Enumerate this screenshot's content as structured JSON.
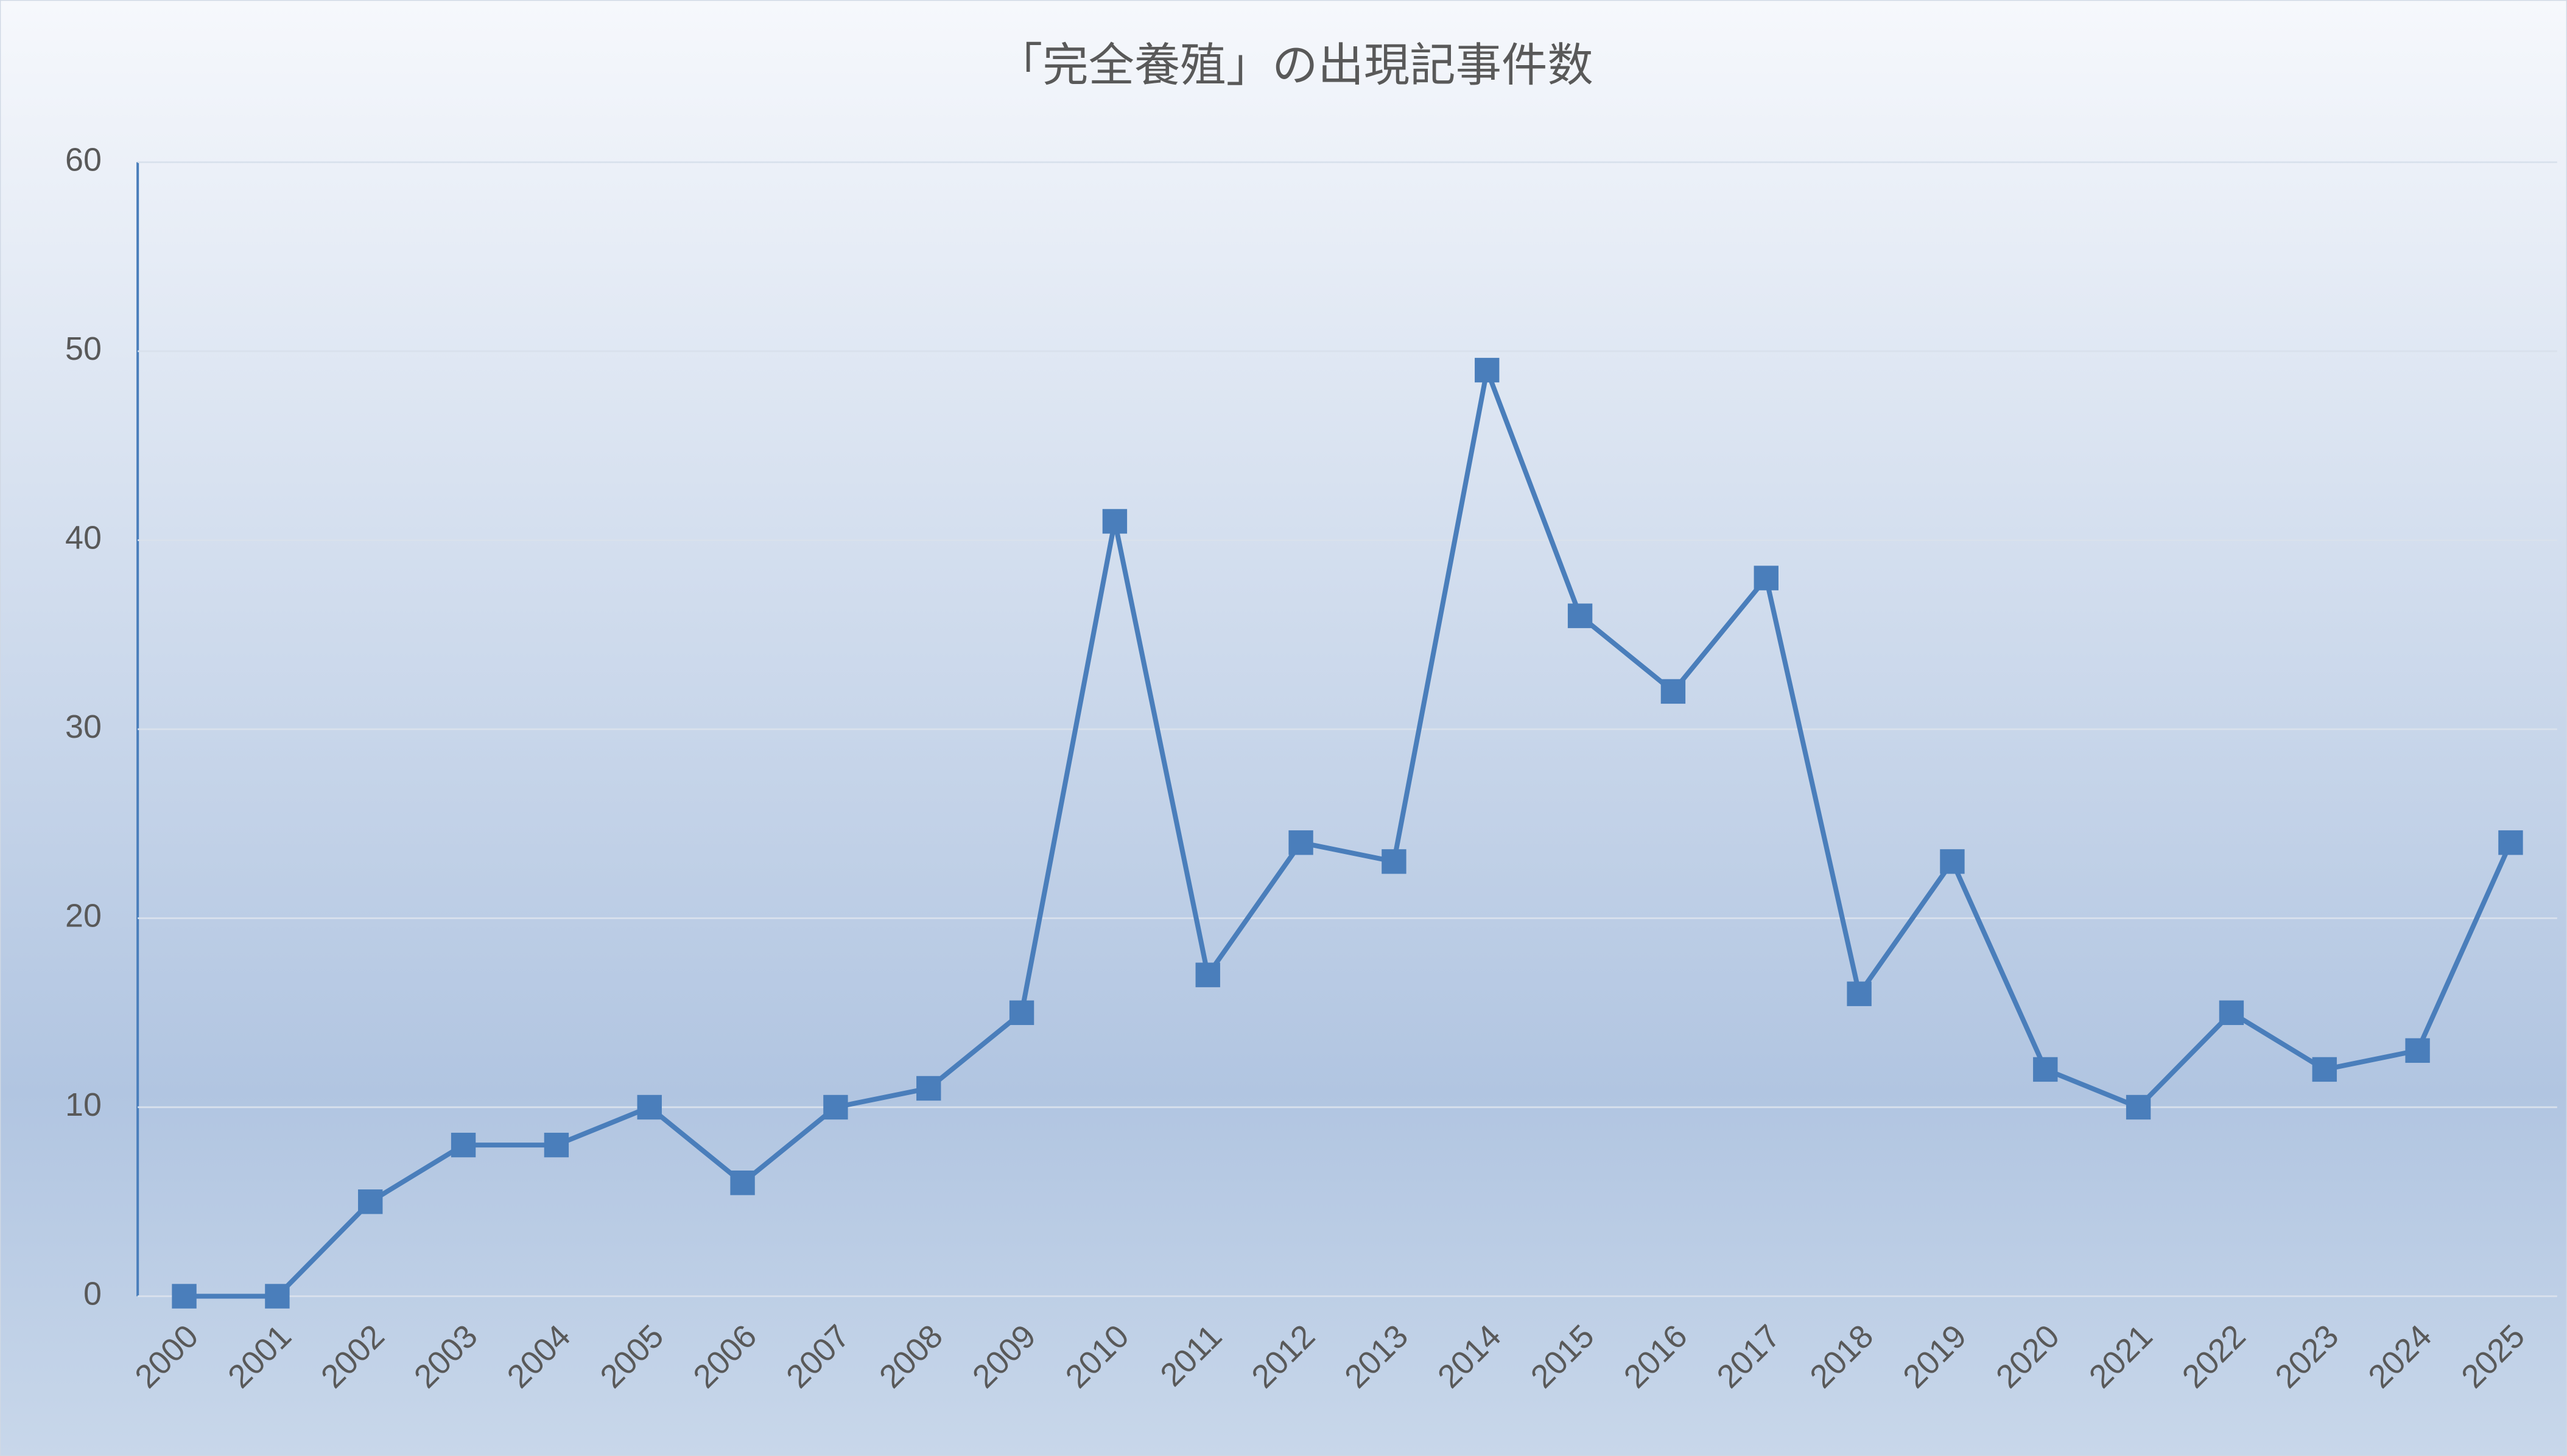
{
  "chart_data": {
    "type": "line",
    "title": "「完全養殖」の出現記事件数",
    "categories": [
      "2000",
      "2001",
      "2002",
      "2003",
      "2004",
      "2005",
      "2006",
      "2007",
      "2008",
      "2009",
      "2010",
      "2011",
      "2012",
      "2013",
      "2014",
      "2015",
      "2016",
      "2017",
      "2018",
      "2019",
      "2020",
      "2021",
      "2022",
      "2023",
      "2024",
      "2025"
    ],
    "series": [
      {
        "name": "出現記事件数",
        "color": "#4a7ebb",
        "values": [
          0,
          0,
          5,
          8,
          8,
          10,
          6,
          10,
          11,
          15,
          41,
          17,
          24,
          23,
          49,
          36,
          32,
          38,
          16,
          23,
          12,
          10,
          15,
          12,
          13,
          24
        ]
      }
    ],
    "ylim": [
      0,
      60
    ],
    "yticks": [
      0,
      10,
      20,
      30,
      40,
      50,
      60
    ],
    "grid": true
  }
}
